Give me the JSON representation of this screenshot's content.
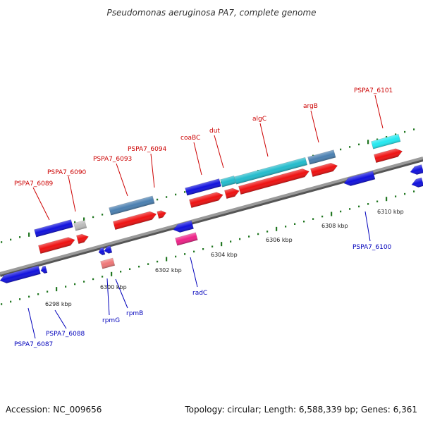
{
  "title": "Pseudomonas aeruginosa PA7, complete genome",
  "footer": {
    "accession": "Accession: NC_009656",
    "topology": "Topology: circular; Length: 6,588,339 bp; Genes: 6,361"
  },
  "colors": {
    "backbone": "#888888",
    "forward_label": "#cc0000",
    "reverse_label": "#0000bb",
    "tick": "#227722",
    "cds_blue": "#1111dd",
    "cds_red": "#ee1111",
    "steelblue": "#4a7fb0",
    "cyan": "#22bbcc",
    "light_cyan": "#22e8f0",
    "gray": "#bbbbbb",
    "pink": "#ee2288",
    "salmon": "#ee7777"
  },
  "scale_labels": [
    "6298 kbp",
    "6300 kbp",
    "6302 kbp",
    "6304 kbp",
    "6306 kbp",
    "6308 kbp",
    "6310 kbp"
  ],
  "forward_labels": [
    "PSPA7_6089",
    "PSPA7_6090",
    "PSPA7_6093",
    "PSPA7_6094",
    "coaBC",
    "dut",
    "algC",
    "argB",
    "PSPA7_6101"
  ],
  "reverse_labels": [
    "PSPA7_6087",
    "PSPA7_6088",
    "rpmG",
    "rpmB",
    "radC",
    "PSPA7_6100"
  ]
}
